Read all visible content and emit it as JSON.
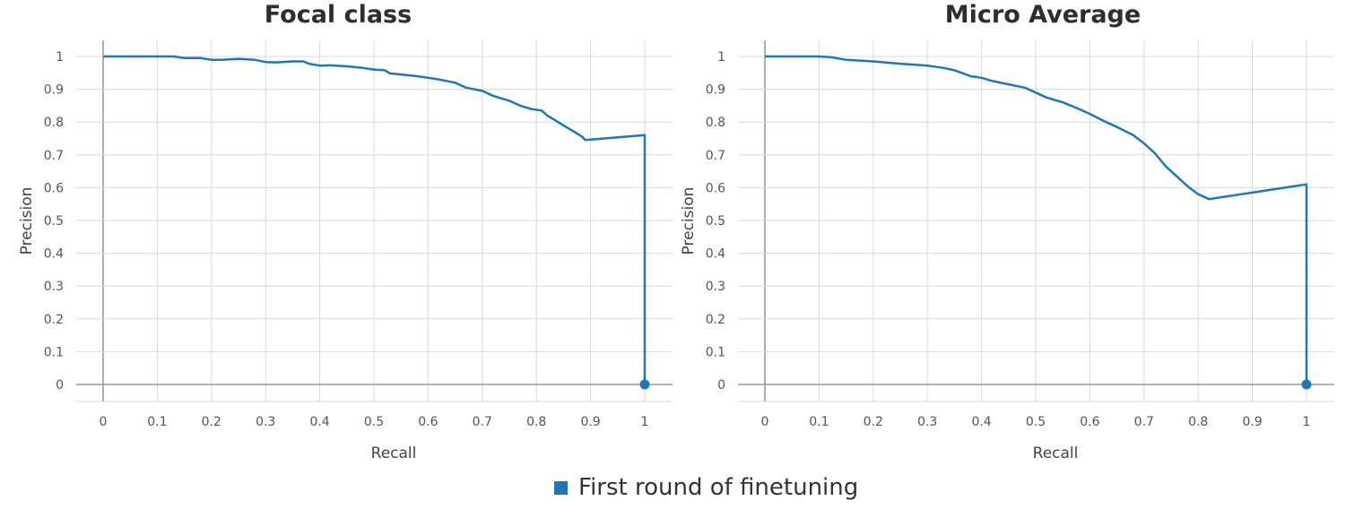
{
  "legend": {
    "label": "First round of finetuning",
    "color": "#1f77b4"
  },
  "chart_data": [
    {
      "type": "line",
      "title": "Focal class",
      "xlabel": "Recall",
      "ylabel": "Precision",
      "xlim": [
        0,
        1
      ],
      "ylim": [
        0,
        1
      ],
      "grid": true,
      "xticks": [
        "0",
        "0.1",
        "0.2",
        "0.3",
        "0.4",
        "0.5",
        "0.6",
        "0.7",
        "0.8",
        "0.9",
        "1"
      ],
      "yticks": [
        "0",
        "0.1",
        "0.2",
        "0.3",
        "0.4",
        "0.5",
        "0.6",
        "0.7",
        "0.8",
        "0.9",
        "1"
      ],
      "series": [
        {
          "name": "First round of finetuning",
          "color": "#1f77b4",
          "x": [
            0,
            0.05,
            0.1,
            0.13,
            0.15,
            0.18,
            0.2,
            0.22,
            0.25,
            0.28,
            0.3,
            0.32,
            0.35,
            0.37,
            0.38,
            0.4,
            0.42,
            0.45,
            0.48,
            0.5,
            0.52,
            0.53,
            0.55,
            0.58,
            0.6,
            0.62,
            0.65,
            0.67,
            0.7,
            0.72,
            0.73,
            0.75,
            0.77,
            0.79,
            0.81,
            0.82,
            0.83,
            0.84,
            0.85,
            0.87,
            0.885,
            0.89,
            1.0,
            1.0
          ],
          "y": [
            1,
            1,
            1,
            1,
            0.995,
            0.995,
            0.99,
            0.99,
            0.993,
            0.99,
            0.983,
            0.982,
            0.985,
            0.985,
            0.978,
            0.972,
            0.973,
            0.97,
            0.965,
            0.96,
            0.958,
            0.948,
            0.945,
            0.94,
            0.935,
            0.93,
            0.92,
            0.905,
            0.895,
            0.88,
            0.875,
            0.865,
            0.85,
            0.84,
            0.835,
            0.82,
            0.81,
            0.8,
            0.79,
            0.77,
            0.755,
            0.745,
            0.76,
            0
          ]
        }
      ],
      "end_marker": {
        "x": 1,
        "y": 0
      }
    },
    {
      "type": "line",
      "title": "Micro Average",
      "xlabel": "Recall",
      "ylabel": "Precision",
      "xlim": [
        0,
        1
      ],
      "ylim": [
        0,
        1
      ],
      "grid": true,
      "xticks": [
        "0",
        "0.1",
        "0.2",
        "0.3",
        "0.4",
        "0.5",
        "0.6",
        "0.7",
        "0.8",
        "0.9",
        "1"
      ],
      "yticks": [
        "0",
        "0.1",
        "0.2",
        "0.3",
        "0.4",
        "0.5",
        "0.6",
        "0.7",
        "0.8",
        "0.9",
        "1"
      ],
      "series": [
        {
          "name": "First round of finetuning",
          "color": "#1f77b4",
          "x": [
            0,
            0.05,
            0.1,
            0.12,
            0.15,
            0.2,
            0.25,
            0.3,
            0.33,
            0.35,
            0.38,
            0.4,
            0.42,
            0.45,
            0.48,
            0.5,
            0.52,
            0.55,
            0.58,
            0.6,
            0.63,
            0.65,
            0.68,
            0.7,
            0.72,
            0.74,
            0.76,
            0.78,
            0.8,
            0.82,
            1.0,
            1.0
          ],
          "y": [
            1,
            1,
            1,
            0.998,
            0.99,
            0.985,
            0.978,
            0.972,
            0.965,
            0.958,
            0.94,
            0.935,
            0.925,
            0.915,
            0.905,
            0.89,
            0.875,
            0.86,
            0.84,
            0.825,
            0.8,
            0.785,
            0.76,
            0.735,
            0.705,
            0.665,
            0.635,
            0.605,
            0.58,
            0.565,
            0.61,
            0
          ]
        }
      ],
      "end_marker": {
        "x": 1,
        "y": 0
      }
    }
  ]
}
